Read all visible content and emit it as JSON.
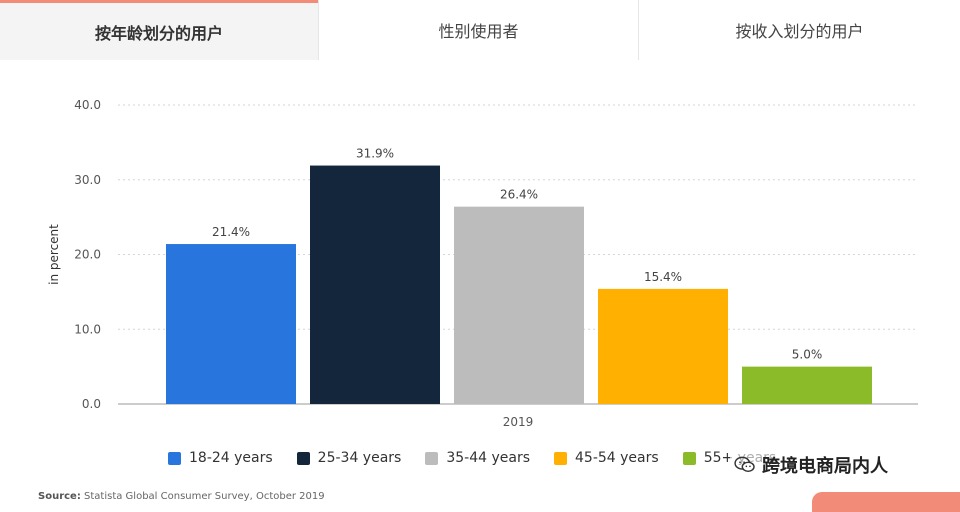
{
  "tabs": [
    {
      "label": "按年龄划分的用户",
      "active": true
    },
    {
      "label": "性别使用者",
      "active": false
    },
    {
      "label": "按收入划分的用户",
      "active": false
    }
  ],
  "chart_data": {
    "type": "bar",
    "title": "",
    "xlabel": "2019",
    "ylabel": "in percent",
    "ylim": [
      0,
      40
    ],
    "yticks": [
      "0.0",
      "10.0",
      "20.0",
      "30.0",
      "40.0"
    ],
    "grid": true,
    "legend_position": "bottom",
    "series": [
      {
        "name": "18-24 years",
        "value": 21.4,
        "label": "21.4%",
        "color": "#2876dd"
      },
      {
        "name": "25-34 years",
        "value": 31.9,
        "label": "31.9%",
        "color": "#13263c"
      },
      {
        "name": "35-44 years",
        "value": 26.4,
        "label": "26.4%",
        "color": "#bcbcbc"
      },
      {
        "name": "45-54 years",
        "value": 15.4,
        "label": "15.4%",
        "color": "#ffb000"
      },
      {
        "name": "55+ years",
        "value": 5.0,
        "label": "5.0%",
        "color": "#8cbb2a"
      }
    ]
  },
  "legend": {
    "items": [
      "18-24 years",
      "25-34 years",
      "35-44 years",
      "45-54 years",
      "55+ years"
    ]
  },
  "source": {
    "prefix": "Source:",
    "text": " Statista Global Consumer Survey, October 2019"
  },
  "watermark": {
    "text": "跨境电商局内人",
    "icon": "wechat-icon"
  }
}
